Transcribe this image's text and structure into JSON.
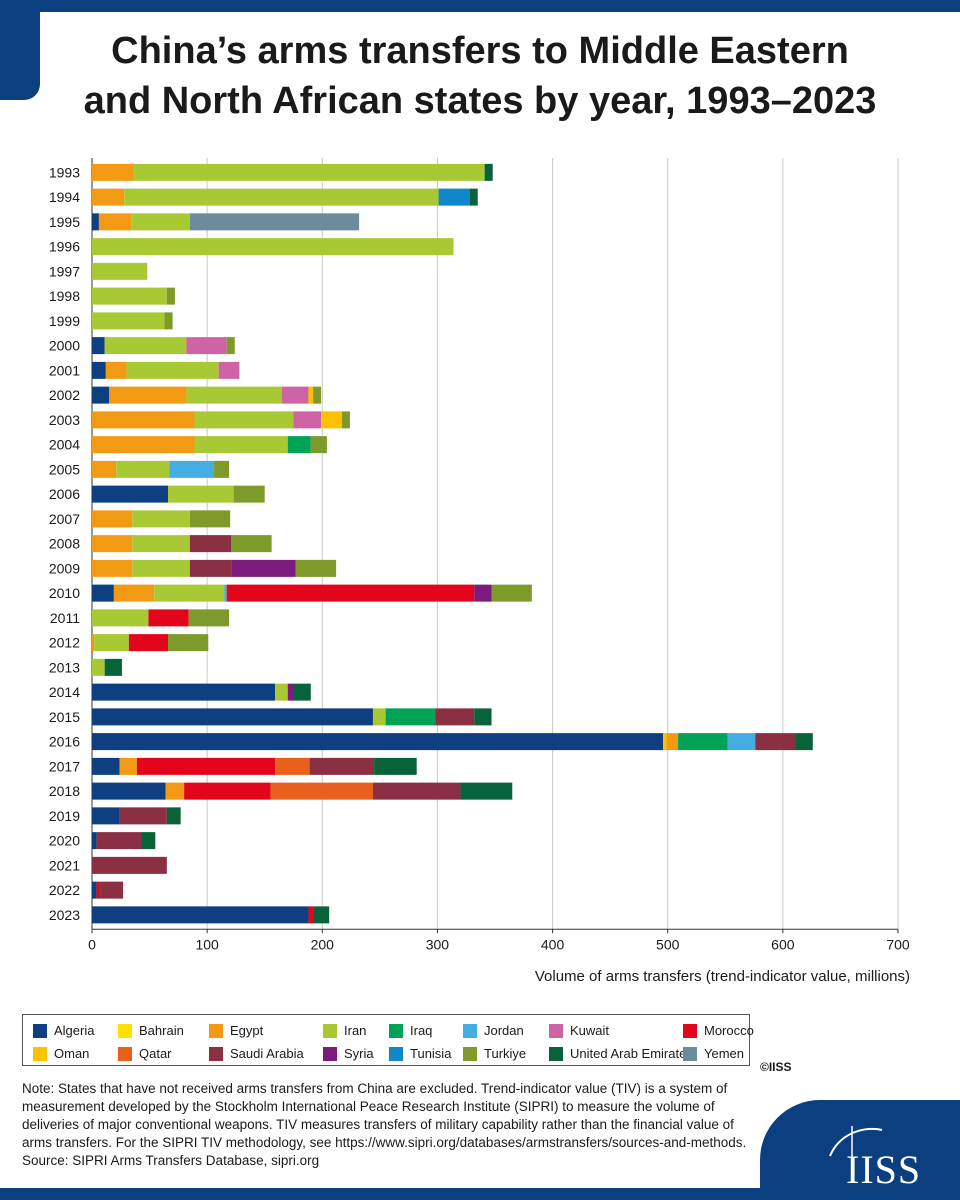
{
  "title_lines": [
    "China’s arms transfers to Middle Eastern",
    "and North African states by year, 1993–2023"
  ],
  "colors": {
    "Algeria": "#0e3f80",
    "Bahrain": "#ffe100",
    "Egypt": "#f39a14",
    "Iran": "#a9c934",
    "Iraq": "#00a256",
    "Jordan": "#46ade3",
    "Kuwait": "#cf63a5",
    "Morocco": "#e3051b",
    "Oman": "#fcc200",
    "Qatar": "#e8601c",
    "Saudi Arabia": "#8b2f42",
    "Syria": "#7a1b7d",
    "Tunisia": "#0f87c8",
    "Turkiye": "#7d9a2a",
    "United Arab Emirates": "#08633a",
    "Yemen": "#6c8c9c"
  },
  "legend": {
    "rows": [
      [
        "Algeria",
        "Bahrain",
        "Egypt",
        "Iran",
        "Iraq",
        "Jordan",
        "Kuwait",
        "Morocco"
      ],
      [
        "Oman",
        "Qatar",
        "Saudi Arabia",
        "Syria",
        "Tunisia",
        "Turkiye",
        "United Arab Emirates",
        "Yemen"
      ]
    ]
  },
  "chart_data": {
    "type": "bar",
    "orientation": "horizontal",
    "stacked": true,
    "xlabel": "Volume of arms transfers (trend-indicator value, millions)",
    "ylabel": "",
    "xlim": [
      0,
      700
    ],
    "xticks": [
      0,
      100,
      200,
      300,
      400,
      500,
      600,
      700
    ],
    "grid": "vertical",
    "categories": [
      "1993",
      "1994",
      "1995",
      "1996",
      "1997",
      "1998",
      "1999",
      "2000",
      "2001",
      "2002",
      "2003",
      "2004",
      "2005",
      "2006",
      "2007",
      "2008",
      "2009",
      "2010",
      "2011",
      "2012",
      "2013",
      "2014",
      "2015",
      "2016",
      "2017",
      "2018",
      "2019",
      "2020",
      "2021",
      "2022",
      "2023"
    ],
    "bars": [
      [
        [
          "Egypt",
          36
        ],
        [
          "Iran",
          305
        ],
        [
          "United Arab Emirates",
          7
        ]
      ],
      [
        [
          "Egypt",
          28
        ],
        [
          "Iran",
          273
        ],
        [
          "Tunisia",
          27
        ],
        [
          "United Arab Emirates",
          7
        ]
      ],
      [
        [
          "Algeria",
          6
        ],
        [
          "Egypt",
          28
        ],
        [
          "Iran",
          51
        ],
        [
          "Yemen",
          147
        ]
      ],
      [
        [
          "Iran",
          314
        ]
      ],
      [
        [
          "Iran",
          48
        ]
      ],
      [
        [
          "Iran",
          65
        ],
        [
          "Turkiye",
          7
        ]
      ],
      [
        [
          "Iran",
          63
        ],
        [
          "Turkiye",
          7
        ]
      ],
      [
        [
          "Algeria",
          11
        ],
        [
          "Iran",
          71
        ],
        [
          "Kuwait",
          35
        ],
        [
          "Turkiye",
          7
        ]
      ],
      [
        [
          "Algeria",
          12
        ],
        [
          "Egypt",
          18
        ],
        [
          "Iran",
          80
        ],
        [
          "Kuwait",
          18
        ]
      ],
      [
        [
          "Algeria",
          15
        ],
        [
          "Egypt",
          67
        ],
        [
          "Iran",
          83
        ],
        [
          "Kuwait",
          23
        ],
        [
          "Oman",
          4
        ],
        [
          "Turkiye",
          7
        ]
      ],
      [
        [
          "Egypt",
          89
        ],
        [
          "Iran",
          86
        ],
        [
          "Kuwait",
          24
        ],
        [
          "Oman",
          18
        ],
        [
          "Turkiye",
          7
        ]
      ],
      [
        [
          "Egypt",
          89
        ],
        [
          "Iran",
          81
        ],
        [
          "Iraq",
          20
        ],
        [
          "Turkiye",
          14
        ]
      ],
      [
        [
          "Egypt",
          21
        ],
        [
          "Iran",
          46
        ],
        [
          "Jordan",
          39
        ],
        [
          "Turkiye",
          13
        ]
      ],
      [
        [
          "Algeria",
          66
        ],
        [
          "Iran",
          57
        ],
        [
          "Turkiye",
          27
        ]
      ],
      [
        [
          "Egypt",
          35
        ],
        [
          "Iran",
          50
        ],
        [
          "Turkiye",
          35
        ]
      ],
      [
        [
          "Egypt",
          35
        ],
        [
          "Iran",
          50
        ],
        [
          "Saudi Arabia",
          36
        ],
        [
          "Turkiye",
          35
        ]
      ],
      [
        [
          "Egypt",
          35
        ],
        [
          "Iran",
          50
        ],
        [
          "Saudi Arabia",
          36
        ],
        [
          "Syria",
          56
        ],
        [
          "Turkiye",
          35
        ]
      ],
      [
        [
          "Algeria",
          19
        ],
        [
          "Egypt",
          35
        ],
        [
          "Iran",
          61
        ],
        [
          "Jordan",
          2
        ],
        [
          "Morocco",
          215
        ],
        [
          "Syria",
          15
        ],
        [
          "Turkiye",
          35
        ]
      ],
      [
        [
          "Iran",
          49
        ],
        [
          "Morocco",
          35
        ],
        [
          "Turkiye",
          35
        ]
      ],
      [
        [
          "Egypt",
          2
        ],
        [
          "Iran",
          30
        ],
        [
          "Morocco",
          34
        ],
        [
          "Turkiye",
          35
        ]
      ],
      [
        [
          "Iran",
          11
        ],
        [
          "United Arab Emirates",
          15
        ]
      ],
      [
        [
          "Algeria",
          159
        ],
        [
          "Iran",
          11
        ],
        [
          "Syria",
          5
        ],
        [
          "United Arab Emirates",
          15
        ]
      ],
      [
        [
          "Algeria",
          244
        ],
        [
          "Iran",
          11
        ],
        [
          "Iraq",
          43
        ],
        [
          "Saudi Arabia",
          34
        ],
        [
          "United Arab Emirates",
          15
        ]
      ],
      [
        [
          "Algeria",
          496
        ],
        [
          "Oman",
          3
        ],
        [
          "Egypt",
          10
        ],
        [
          "Iraq",
          43
        ],
        [
          "Jordan",
          24
        ],
        [
          "Saudi Arabia",
          35
        ],
        [
          "United Arab Emirates",
          15
        ]
      ],
      [
        [
          "Algeria",
          24
        ],
        [
          "Egypt",
          15
        ],
        [
          "Morocco",
          120
        ],
        [
          "Qatar",
          30
        ],
        [
          "Saudi Arabia",
          56
        ],
        [
          "United Arab Emirates",
          37
        ]
      ],
      [
        [
          "Algeria",
          64
        ],
        [
          "Egypt",
          16
        ],
        [
          "Morocco",
          75
        ],
        [
          "Qatar",
          89
        ],
        [
          "Saudi Arabia",
          76
        ],
        [
          "United Arab Emirates",
          45
        ]
      ],
      [
        [
          "Algeria",
          24
        ],
        [
          "Saudi Arabia",
          41
        ],
        [
          "United Arab Emirates",
          12
        ]
      ],
      [
        [
          "Algeria",
          4
        ],
        [
          "Saudi Arabia",
          39
        ],
        [
          "United Arab Emirates",
          12
        ]
      ],
      [
        [
          "Saudi Arabia",
          65
        ]
      ],
      [
        [
          "Algeria",
          4
        ],
        [
          "Morocco",
          3
        ],
        [
          "Saudi Arabia",
          20
        ]
      ],
      [
        [
          "Algeria",
          188
        ],
        [
          "Morocco",
          4
        ],
        [
          "United Arab Emirates",
          14
        ]
      ]
    ]
  },
  "copyright": "©IISS",
  "note_lines": [
    "Note: States that have not received arms transfers from China are excluded. Trend-indicator value (TIV) is a system of",
    "measurement developed by the Stockholm International Peace Research Institute (SIPRI) to measure the volume of",
    "deliveries of major conventional weapons. TIV measures transfers of military capability rather than the financial value of",
    "arms transfers. For the SIPRI TIV methodology, see https://www.sipri.org/databases/armstransfers/sources-and-methods.",
    "Source: SIPRI Arms Transfers Database, sipri.org"
  ],
  "brand": "IISS"
}
